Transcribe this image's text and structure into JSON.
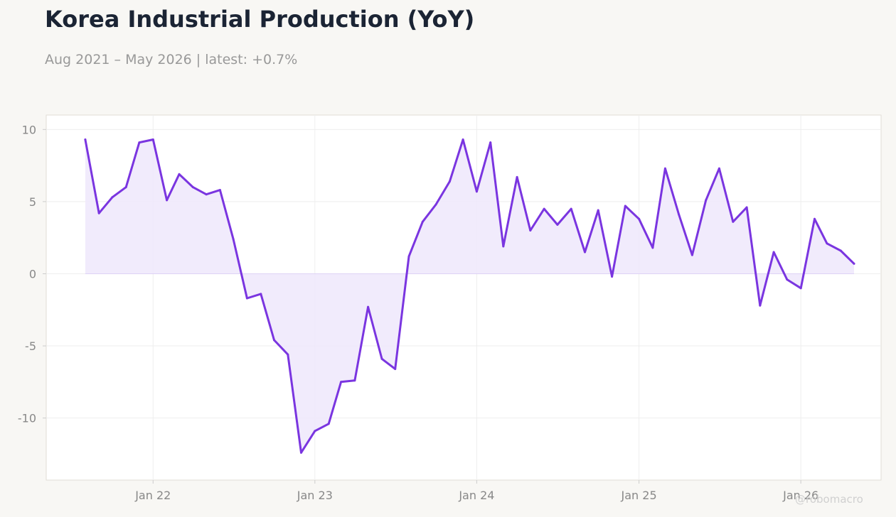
{
  "header": {
    "title": "Korea Industrial Production (YoY)",
    "subtitle": "Aug 2021 – May 2026 | latest: +0.7%"
  },
  "watermark": "@robomacro",
  "chart_data": {
    "type": "area",
    "title": "Korea Industrial Production (YoY)",
    "xlabel": "",
    "ylabel": "",
    "grid": true,
    "ylim": [
      -14.3,
      11
    ],
    "xlim": [
      "2021-05-05",
      "2026-07-01"
    ],
    "colors": {
      "line": "#7a35e0",
      "fill": "#efe8fb",
      "background": "#ffffff",
      "page": "#f8f7f4"
    },
    "x_ticks": [
      {
        "label": "Jan 22",
        "x": "2022-01"
      },
      {
        "label": "Jan 23",
        "x": "2023-01"
      },
      {
        "label": "Jan 24",
        "x": "2024-01"
      },
      {
        "label": "Jan 25",
        "x": "2025-01"
      },
      {
        "label": "Jan 26",
        "x": "2026-01"
      }
    ],
    "y_ticks": [
      10,
      5,
      0,
      -5,
      -10
    ],
    "y_tick_labels": [
      "10",
      "5",
      "0",
      "-5",
      "-10"
    ],
    "series": [
      {
        "x": [
          "2021-08",
          "2021-09",
          "2021-10",
          "2021-11",
          "2021-12",
          "2022-01",
          "2022-02",
          "2022-03",
          "2022-04",
          "2022-05",
          "2022-06",
          "2022-07",
          "2022-08",
          "2022-09",
          "2022-10",
          "2022-11",
          "2022-12",
          "2023-01",
          "2023-02",
          "2023-03",
          "2023-04",
          "2023-05",
          "2023-06",
          "2023-07",
          "2023-08",
          "2023-09",
          "2023-10",
          "2023-11",
          "2023-12",
          "2024-01",
          "2024-02",
          "2024-03",
          "2024-04",
          "2024-05",
          "2024-06",
          "2024-07",
          "2024-08",
          "2024-09",
          "2024-10",
          "2024-11",
          "2024-12",
          "2025-01",
          "2025-02",
          "2025-03",
          "2025-04",
          "2025-05",
          "2025-06",
          "2025-07",
          "2025-08",
          "2025-09",
          "2025-10",
          "2025-11",
          "2025-12",
          "2026-01",
          "2026-02",
          "2026-03",
          "2026-04",
          "2026-05"
        ],
        "values": [
          9.3,
          4.2,
          5.3,
          6.0,
          9.1,
          9.3,
          5.1,
          6.9,
          6.0,
          5.5,
          5.8,
          2.4,
          -1.7,
          -1.4,
          -4.6,
          -5.6,
          -12.4,
          -10.9,
          -10.4,
          -7.5,
          -7.4,
          -2.3,
          -5.9,
          -6.6,
          1.2,
          3.6,
          4.8,
          6.4,
          9.3,
          5.7,
          9.1,
          1.9,
          6.7,
          3.0,
          4.5,
          3.4,
          4.5,
          1.5,
          4.4,
          -0.2,
          4.7,
          3.8,
          1.8,
          7.3,
          4.1,
          1.3,
          5.1,
          7.3,
          3.6,
          4.6,
          -2.2,
          1.5,
          -0.4,
          -1.0,
          3.8,
          2.1,
          1.6,
          0.7
        ]
      }
    ]
  }
}
